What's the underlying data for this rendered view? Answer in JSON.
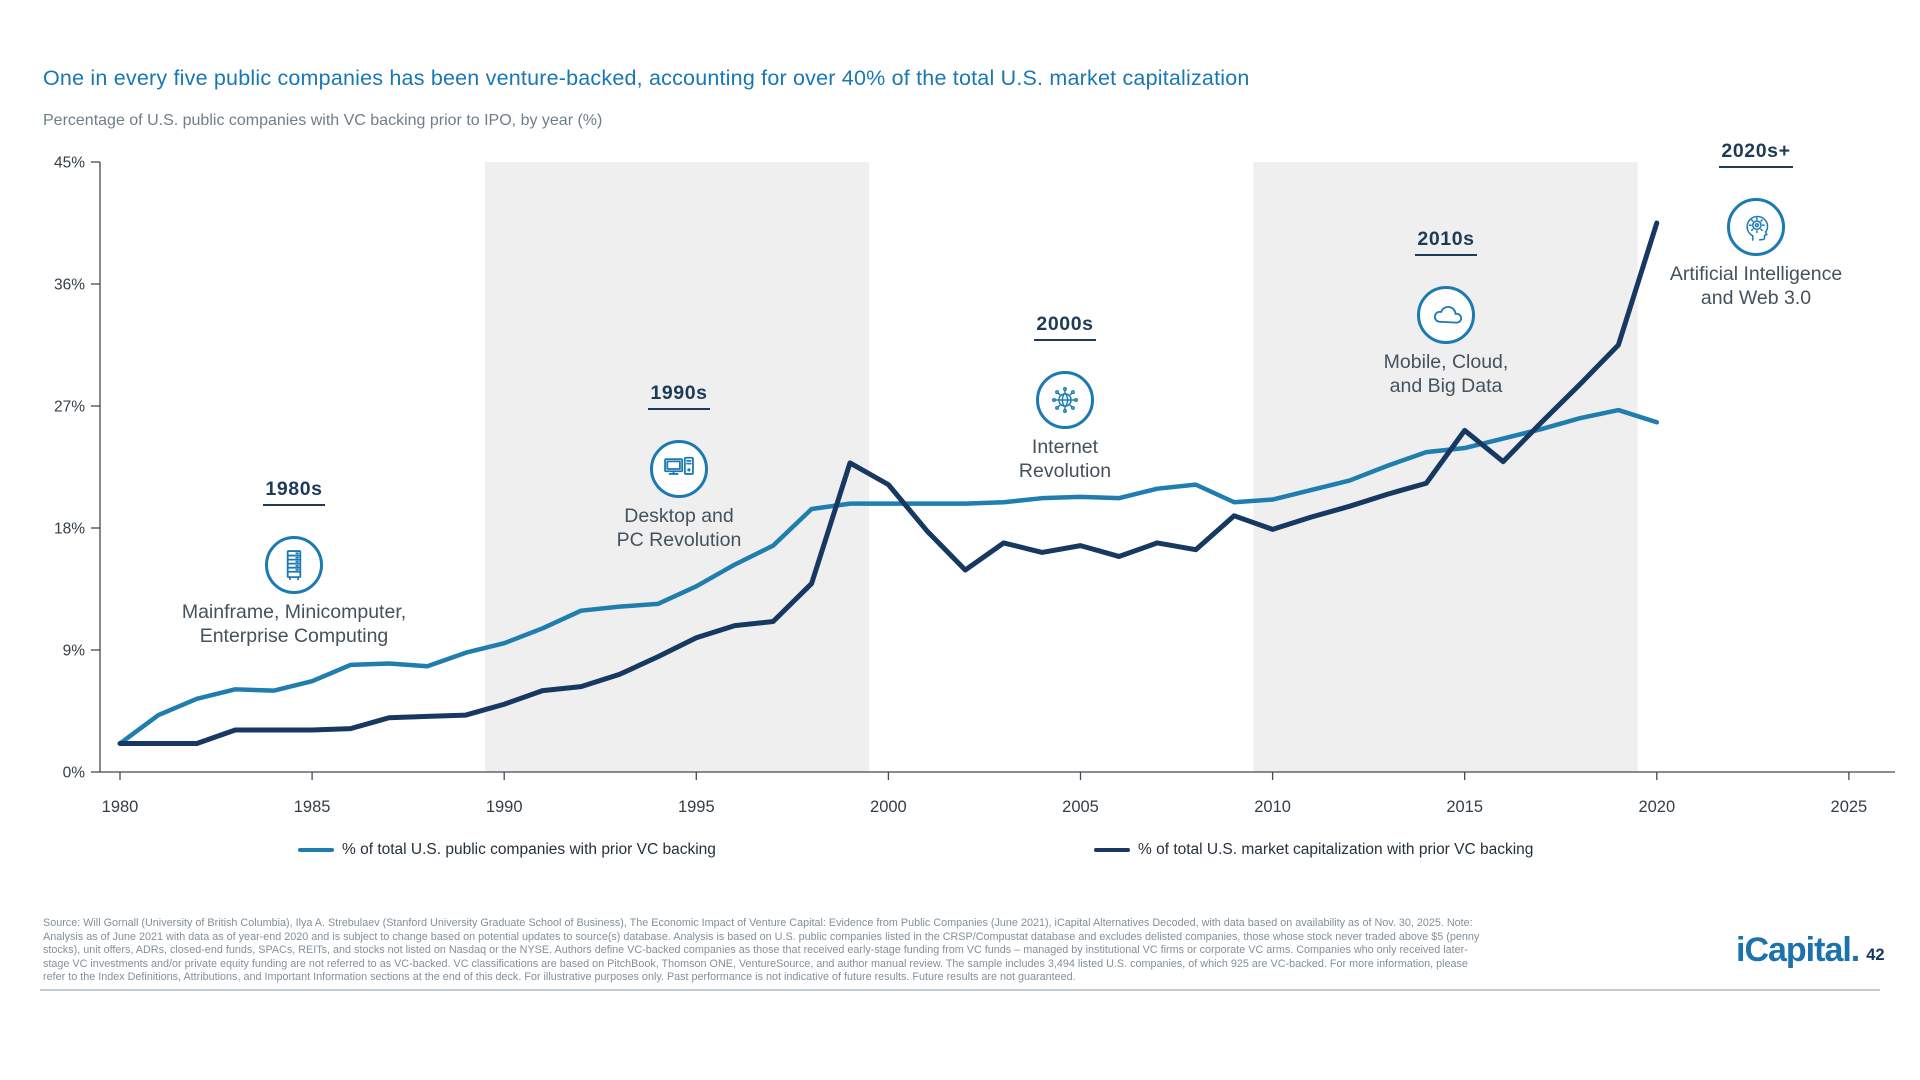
{
  "page": {
    "title": "One in every five public companies has been venture-backed, accounting for over 40% of the total U.S. market capitalization",
    "subtitle": "Percentage of U.S. public companies with VC backing prior to IPO, by year (%)",
    "logo_text": "iCapital.",
    "page_number": "42",
    "colors": {
      "title_blue": "#1878b4",
      "icon_blue": "#1b7ab2",
      "band_gray": "#efeff0",
      "axis": "#3f4a54"
    }
  },
  "decades": [
    {
      "label": "1980s",
      "icon": "server-icon",
      "caption": "Mainframe, Minicomputer,\nEnterprise Computing"
    },
    {
      "label": "1990s",
      "icon": "desktop-pc-icon",
      "caption": "Desktop and\nPC Revolution"
    },
    {
      "label": "2000s",
      "icon": "internet-globe-icon",
      "caption": "Internet\nRevolution"
    },
    {
      "label": "2010s",
      "icon": "cloud-icon",
      "caption": "Mobile, Cloud,\nand Big Data"
    },
    {
      "label": "2020s+",
      "icon": "ai-head-icon",
      "caption": "Artificial Intelligence\nand Web 3.0"
    }
  ],
  "chart_data": {
    "type": "line",
    "title": "Percentage of U.S. public companies with VC backing prior to IPO, by year (%)",
    "x_start": 1980,
    "x_step": 1,
    "xlim": [
      1979.5,
      2026
    ],
    "ylim": [
      0,
      45
    ],
    "grid": false,
    "legend_position": "bottom",
    "x_ticks": [
      {
        "v": 1980,
        "label": "1980"
      },
      {
        "v": 1985,
        "label": "1985"
      },
      {
        "v": 1990,
        "label": "1990"
      },
      {
        "v": 1995,
        "label": "1995"
      },
      {
        "v": 2000,
        "label": "2000"
      },
      {
        "v": 2005,
        "label": "2005"
      },
      {
        "v": 2010,
        "label": "2010"
      },
      {
        "v": 2015,
        "label": "2015"
      },
      {
        "v": 2020,
        "label": "2020"
      },
      {
        "v": 2025,
        "label": "2025"
      }
    ],
    "y_ticks": [
      {
        "v": 0,
        "label": "0%"
      },
      {
        "v": 9,
        "label": "9%"
      },
      {
        "v": 18,
        "label": "18%"
      },
      {
        "v": 27,
        "label": "27%"
      },
      {
        "v": 36,
        "label": "36%"
      },
      {
        "v": 45,
        "label": "45%"
      }
    ],
    "shaded_bands": [
      {
        "from": 1989.5,
        "to": 1999.5,
        "era": "1990s"
      },
      {
        "from": 2009.5,
        "to": 2019.5,
        "era": "2010s"
      }
    ],
    "series": [
      {
        "name": "% of total U.S. public companies with prior VC backing",
        "color": "#1f7eae",
        "line_width": 4.5,
        "values": [
          2.1,
          4.2,
          5.4,
          6.1,
          6.0,
          6.7,
          7.9,
          8.0,
          7.8,
          8.8,
          9.5,
          10.6,
          11.9,
          12.2,
          12.4,
          13.7,
          15.3,
          16.7,
          19.4,
          19.8,
          19.8,
          19.8,
          19.8,
          19.9,
          20.2,
          20.3,
          20.2,
          20.9,
          21.2,
          19.9,
          20.1,
          20.8,
          21.5,
          22.6,
          23.6,
          23.9,
          24.6,
          25.3,
          26.1,
          26.7,
          25.8
        ]
      },
      {
        "name": "% of total U.S. market capitalization with prior VC backing",
        "color": "#173860",
        "line_width": 5,
        "values": [
          2.1,
          2.1,
          2.1,
          3.1,
          3.1,
          3.1,
          3.2,
          4.0,
          4.1,
          4.2,
          5.0,
          6.0,
          6.3,
          7.2,
          8.5,
          9.9,
          10.8,
          11.1,
          13.9,
          22.8,
          21.2,
          17.8,
          14.9,
          16.9,
          16.2,
          16.7,
          15.9,
          16.9,
          16.4,
          18.9,
          17.9,
          18.8,
          19.6,
          20.5,
          21.3,
          25.2,
          22.9,
          25.8,
          28.6,
          31.5,
          40.5
        ]
      }
    ]
  },
  "footer": {
    "lines": [
      "Source: Will Gornall (University of British Columbia), Ilya A. Strebulaev (Stanford University Graduate School of Business), The Economic Impact of Venture Capital: Evidence from Public Companies (June 2021), iCapital Alternatives Decoded, with data based on availability as of Nov. 30, 2025. Note:",
      "Analysis as of June 2021 with data as of year-end 2020 and is subject to change based on potential updates to source(s) database. Analysis is based on U.S. public companies listed in the CRSP/Compustat database and excludes delisted companies, those whose stock never traded above $5 (penny",
      "stocks), unit offers, ADRs, closed-end funds, SPACs, REITs, and stocks not listed on Nasdaq or the NYSE. Authors define VC-backed companies as those that received early-stage funding from VC funds – managed by institutional VC firms or corporate VC arms. Companies who only received later-",
      "stage VC investments and/or private equity funding are not referred to as VC-backed. VC classifications are based on PitchBook, Thomson ONE, VentureSource, and author manual review. The sample includes 3,494 listed U.S. companies, of which 925 are VC-backed. For more information, please",
      "refer to the Index Definitions, Attributions, and Important Information sections at the end of this deck. For illustrative purposes only. Past performance is not indicative of future results. Future results are not guaranteed."
    ]
  }
}
